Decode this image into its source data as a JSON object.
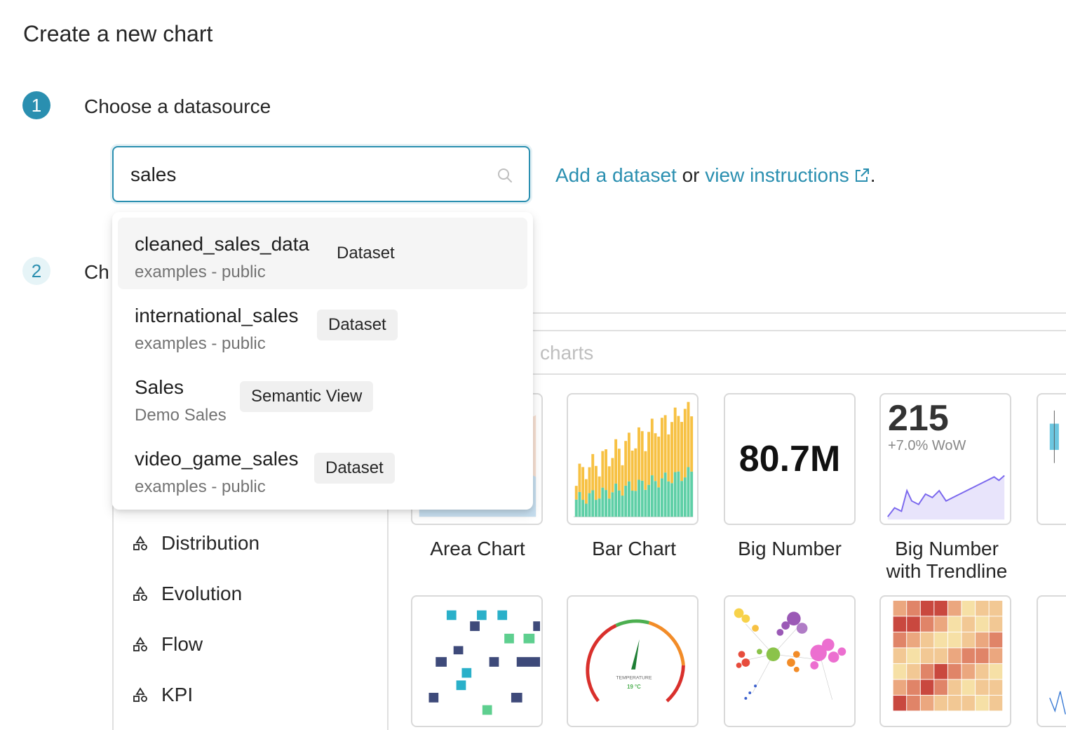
{
  "page": {
    "title": "Create a new chart"
  },
  "steps": [
    {
      "number": "1",
      "label": "Choose a datasource"
    },
    {
      "number": "2",
      "label": "Ch"
    }
  ],
  "datasource": {
    "search_value": "sales",
    "add_dataset_label": "Add a dataset",
    "or_text": " or ",
    "view_instructions_label": "view instructions",
    "period": "."
  },
  "dropdown": {
    "options": [
      {
        "name": "cleaned_sales_data",
        "schema": "examples - public",
        "type": "Dataset"
      },
      {
        "name": "international_sales",
        "schema": "examples - public",
        "type": "Dataset"
      },
      {
        "name": "Sales",
        "schema": "Demo Sales",
        "type": "Semantic View"
      },
      {
        "name": "video_game_sales",
        "schema": "examples - public",
        "type": "Dataset"
      }
    ]
  },
  "gallery": {
    "search_hint": "charts",
    "categories": [
      "Distribution",
      "Evolution",
      "Flow",
      "KPI"
    ],
    "tiles": [
      {
        "label": "Area Chart"
      },
      {
        "label": "Bar Chart"
      },
      {
        "label": "Big Number",
        "preview_value": "80.7M"
      },
      {
        "label_line1": "Big Number",
        "label_line2": "with Trendline",
        "preview_value": "215",
        "preview_delta": "+7.0% WoW"
      }
    ],
    "gauge_text": {
      "title": "TEMPERATURE",
      "value": "19 °C"
    }
  },
  "colors": {
    "accent": "#2a8fb0",
    "bar_yellow": "#f7c143",
    "bar_green": "#5ecfa6"
  }
}
